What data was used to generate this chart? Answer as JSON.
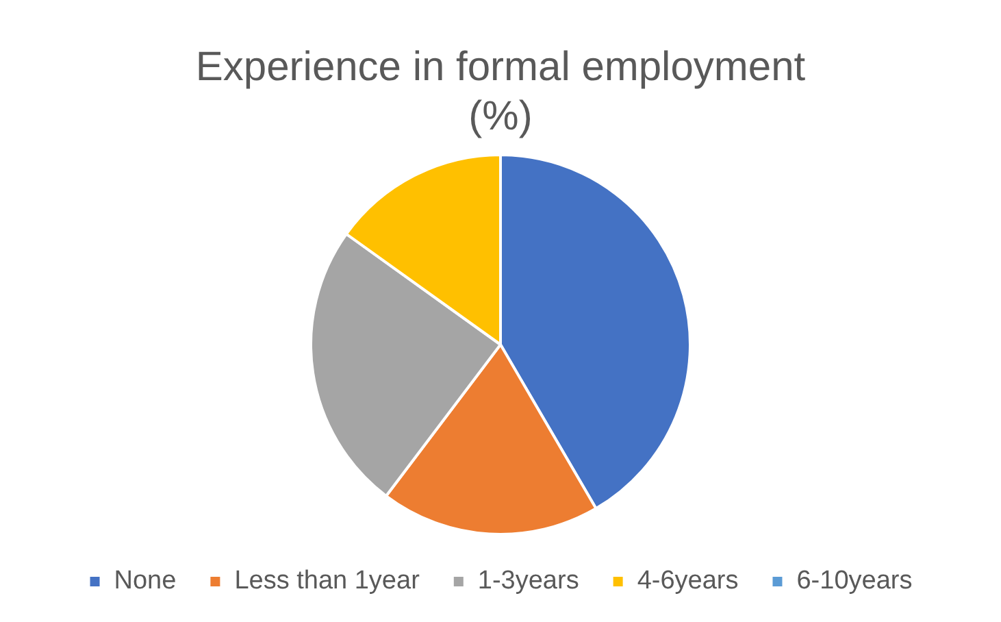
{
  "chart_data": {
    "type": "pie",
    "title": "Experience in formal employment (%)",
    "categories": [
      "None",
      "Less than 1year",
      "1-3years",
      "4-6years",
      "6-10years"
    ],
    "values": [
      41.6,
      18.7,
      24.6,
      15.1,
      0
    ],
    "colors": [
      "#4472c4",
      "#ed7d31",
      "#a5a5a5",
      "#ffc000",
      "#5b9bd5"
    ],
    "legend": "bottom"
  }
}
